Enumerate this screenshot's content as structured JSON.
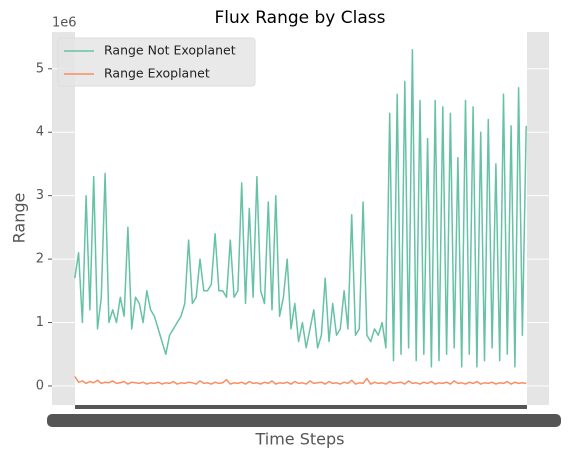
{
  "chart_data": {
    "type": "line",
    "title": "Flux Range by Class",
    "xlabel": "Time Steps",
    "ylabel": "Range",
    "y_offset_label": "1e6",
    "x": [
      0,
      1,
      2,
      3,
      4,
      5,
      6,
      7,
      8,
      9,
      10,
      11,
      12,
      13,
      14,
      15,
      16,
      17,
      18,
      19,
      20,
      21,
      22,
      23,
      24,
      25,
      26,
      27,
      28,
      29,
      30,
      31,
      32,
      33,
      34,
      35,
      36,
      37,
      38,
      39,
      40,
      41,
      42,
      43,
      44,
      45,
      46,
      47,
      48,
      49,
      50,
      51,
      52,
      53,
      54,
      55,
      56,
      57,
      58,
      59,
      60,
      61,
      62,
      63,
      64,
      65,
      66,
      67,
      68,
      69,
      70,
      71,
      72,
      73,
      74,
      75,
      76,
      77,
      78,
      79,
      80,
      81,
      82,
      83,
      84,
      85,
      86,
      87,
      88,
      89,
      90,
      91,
      92,
      93,
      94,
      95,
      96,
      97,
      98,
      99,
      100,
      101,
      102,
      103,
      104,
      105,
      106,
      107,
      108,
      109,
      110,
      111,
      112,
      113,
      114,
      115,
      116,
      117,
      118,
      119
    ],
    "series": [
      {
        "name": "Range Not Exoplanet",
        "color": "#66c2a5",
        "values": [
          1.7,
          2.1,
          1.0,
          3.0,
          1.2,
          3.3,
          0.9,
          1.4,
          3.35,
          1.0,
          1.2,
          1.0,
          1.4,
          1.1,
          2.5,
          0.9,
          1.4,
          1.3,
          1.0,
          1.5,
          1.2,
          1.1,
          0.9,
          0.7,
          0.5,
          0.8,
          0.9,
          1.0,
          1.1,
          1.3,
          2.3,
          1.3,
          1.4,
          2.0,
          1.5,
          1.5,
          1.6,
          2.4,
          1.5,
          1.5,
          1.4,
          2.3,
          1.4,
          1.5,
          3.2,
          1.3,
          2.8,
          1.4,
          3.3,
          1.5,
          1.3,
          2.9,
          1.2,
          3.0,
          1.1,
          1.4,
          2.0,
          0.9,
          1.3,
          0.7,
          1.0,
          0.6,
          0.9,
          1.2,
          0.6,
          0.8,
          1.7,
          0.7,
          1.3,
          0.8,
          0.9,
          1.5,
          0.9,
          2.7,
          0.8,
          0.9,
          2.9,
          0.8,
          0.7,
          0.9,
          0.8,
          1.0,
          0.6,
          4.3,
          0.4,
          4.6,
          0.5,
          4.8,
          0.6,
          5.3,
          0.4,
          4.5,
          0.5,
          3.9,
          0.3,
          4.5,
          0.4,
          4.4,
          0.5,
          4.3,
          0.6,
          3.6,
          0.3,
          4.5,
          0.5,
          4.4,
          0.3,
          4.0,
          0.4,
          4.2,
          0.6,
          3.5,
          0.4,
          4.6,
          0.5,
          4.1,
          0.3,
          4.7,
          0.8,
          4.1
        ]
      },
      {
        "name": "Range Exoplanet",
        "color": "#fc8d62",
        "values": [
          0.15,
          0.06,
          0.08,
          0.04,
          0.07,
          0.05,
          0.09,
          0.04,
          0.06,
          0.05,
          0.08,
          0.04,
          0.05,
          0.07,
          0.03,
          0.06,
          0.05,
          0.04,
          0.06,
          0.03,
          0.05,
          0.04,
          0.06,
          0.03,
          0.05,
          0.04,
          0.07,
          0.03,
          0.05,
          0.04,
          0.06,
          0.05,
          0.03,
          0.08,
          0.04,
          0.05,
          0.03,
          0.06,
          0.04,
          0.05,
          0.1,
          0.03,
          0.05,
          0.04,
          0.06,
          0.03,
          0.07,
          0.04,
          0.05,
          0.03,
          0.06,
          0.04,
          0.08,
          0.03,
          0.05,
          0.04,
          0.06,
          0.03,
          0.07,
          0.04,
          0.05,
          0.03,
          0.08,
          0.04,
          0.05,
          0.06,
          0.03,
          0.07,
          0.04,
          0.05,
          0.03,
          0.06,
          0.04,
          0.09,
          0.03,
          0.05,
          0.04,
          0.12,
          0.03,
          0.06,
          0.04,
          0.05,
          0.03,
          0.07,
          0.04,
          0.05,
          0.06,
          0.03,
          0.08,
          0.04,
          0.05,
          0.03,
          0.06,
          0.04,
          0.07,
          0.03,
          0.05,
          0.04,
          0.06,
          0.03,
          0.08,
          0.04,
          0.05,
          0.03,
          0.06,
          0.04,
          0.07,
          0.03,
          0.05,
          0.04,
          0.06,
          0.03,
          0.05,
          0.04,
          0.07,
          0.03,
          0.06,
          0.04,
          0.05,
          0.04
        ]
      }
    ],
    "xlim": [
      -6,
      125
    ],
    "ylim": [
      -0.3,
      5.58
    ],
    "yticks": [
      0,
      1,
      2,
      3,
      4,
      5
    ],
    "grid": true,
    "legend": "upper left"
  }
}
